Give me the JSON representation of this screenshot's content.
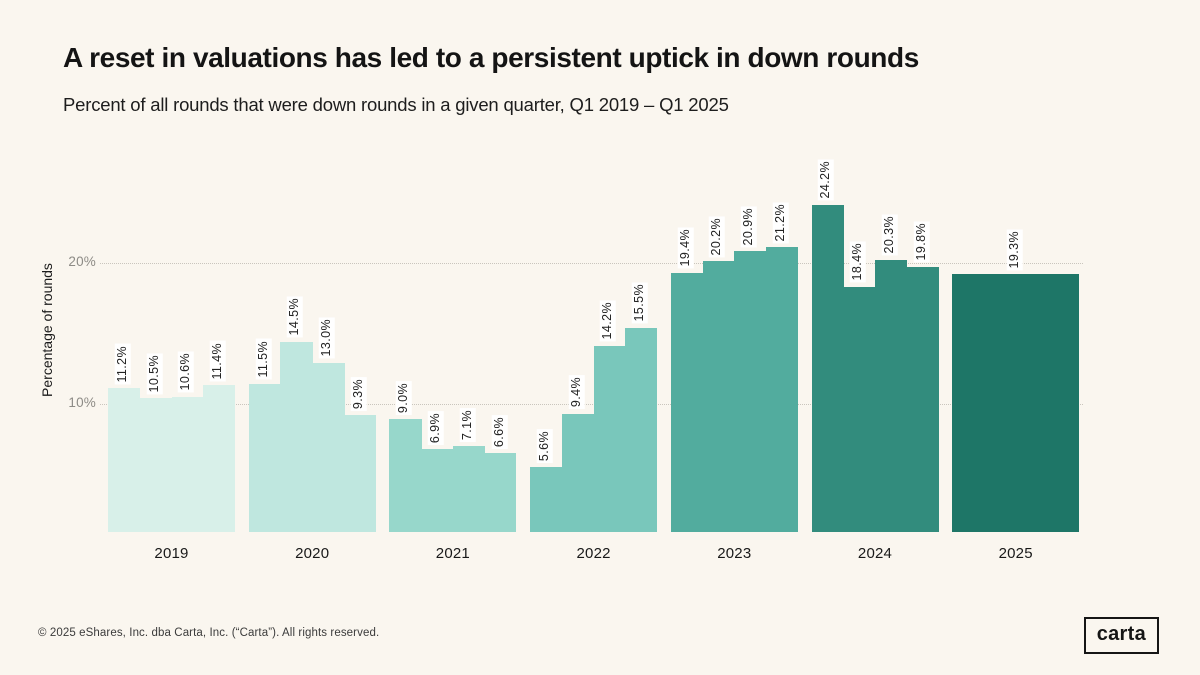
{
  "header": {
    "title": "A reset in valuations has led to a persistent uptick in down rounds",
    "subtitle": "Percent of all rounds that were down rounds in a given quarter, Q1 2019 – Q1 2025"
  },
  "chart_data": {
    "type": "bar",
    "title": "A reset in valuations has led to a persistent uptick in down rounds",
    "subtitle": "Percent of all rounds that were down rounds in a given quarter, Q1 2019 – Q1 2025",
    "ylabel": "Percentage of rounds",
    "xlabel": "",
    "y_axis_min": 1,
    "y_ticks": [
      {
        "value": 10,
        "label": "10%"
      },
      {
        "value": 20,
        "label": "20%"
      }
    ],
    "grid": "horizontal-dotted",
    "legend": "none",
    "groups": [
      {
        "year": "2019",
        "color": "#d8f0e9",
        "values": [
          11.2,
          10.5,
          10.6,
          11.4
        ],
        "labels": [
          "11.2%",
          "10.5%",
          "10.6%",
          "11.4%"
        ]
      },
      {
        "year": "2020",
        "color": "#bfe7df",
        "values": [
          11.5,
          14.5,
          13.0,
          9.3
        ],
        "labels": [
          "11.5%",
          "14.5%",
          "13.0%",
          "9.3%"
        ]
      },
      {
        "year": "2021",
        "color": "#97d7cb",
        "values": [
          9.0,
          6.9,
          7.1,
          6.6
        ],
        "labels": [
          "9.0%",
          "6.9%",
          "7.1%",
          "6.6%"
        ]
      },
      {
        "year": "2022",
        "color": "#79c7bb",
        "values": [
          5.6,
          9.4,
          14.2,
          15.5
        ],
        "labels": [
          "5.6%",
          "9.4%",
          "14.2%",
          "15.5%"
        ]
      },
      {
        "year": "2023",
        "color": "#52ac9e",
        "values": [
          19.4,
          20.2,
          20.9,
          21.2
        ],
        "labels": [
          "19.4%",
          "20.2%",
          "20.9%",
          "21.2%"
        ]
      },
      {
        "year": "2024",
        "color": "#328c7d",
        "values": [
          24.2,
          18.4,
          20.3,
          19.8
        ],
        "labels": [
          "24.2%",
          "18.4%",
          "20.3%",
          "19.8%"
        ]
      },
      {
        "year": "2025",
        "color": "#1e7667",
        "values": [
          19.3
        ],
        "labels": [
          "19.3%"
        ]
      }
    ]
  },
  "footer": {
    "copyright": "© 2025 eShares, Inc. dba Carta, Inc. (“Carta”). All rights reserved.",
    "logo_text": "carta"
  }
}
